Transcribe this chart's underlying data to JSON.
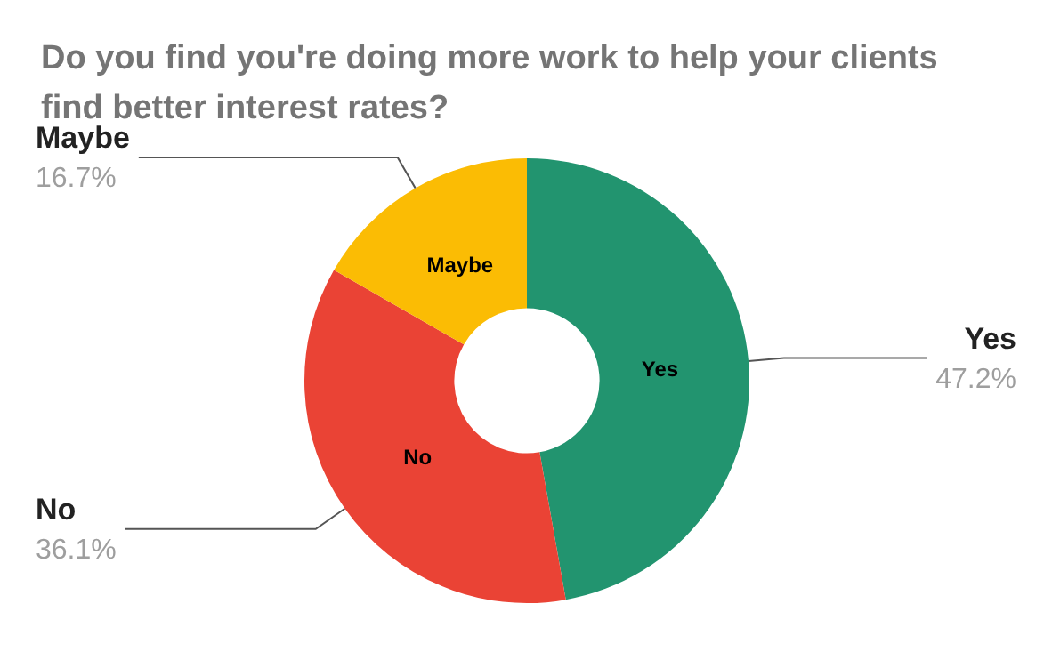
{
  "chart_data": {
    "type": "donut",
    "title": "Do you find you're doing more work to help your clients find better interest rates?",
    "categories": [
      "Yes",
      "No",
      "Maybe"
    ],
    "values": [
      47.2,
      36.1,
      16.7
    ],
    "value_labels": [
      "47.2%",
      "36.1%",
      "16.7%"
    ],
    "colors": [
      "#22946f",
      "#ea4335",
      "#fbbc04"
    ],
    "legend": false
  }
}
